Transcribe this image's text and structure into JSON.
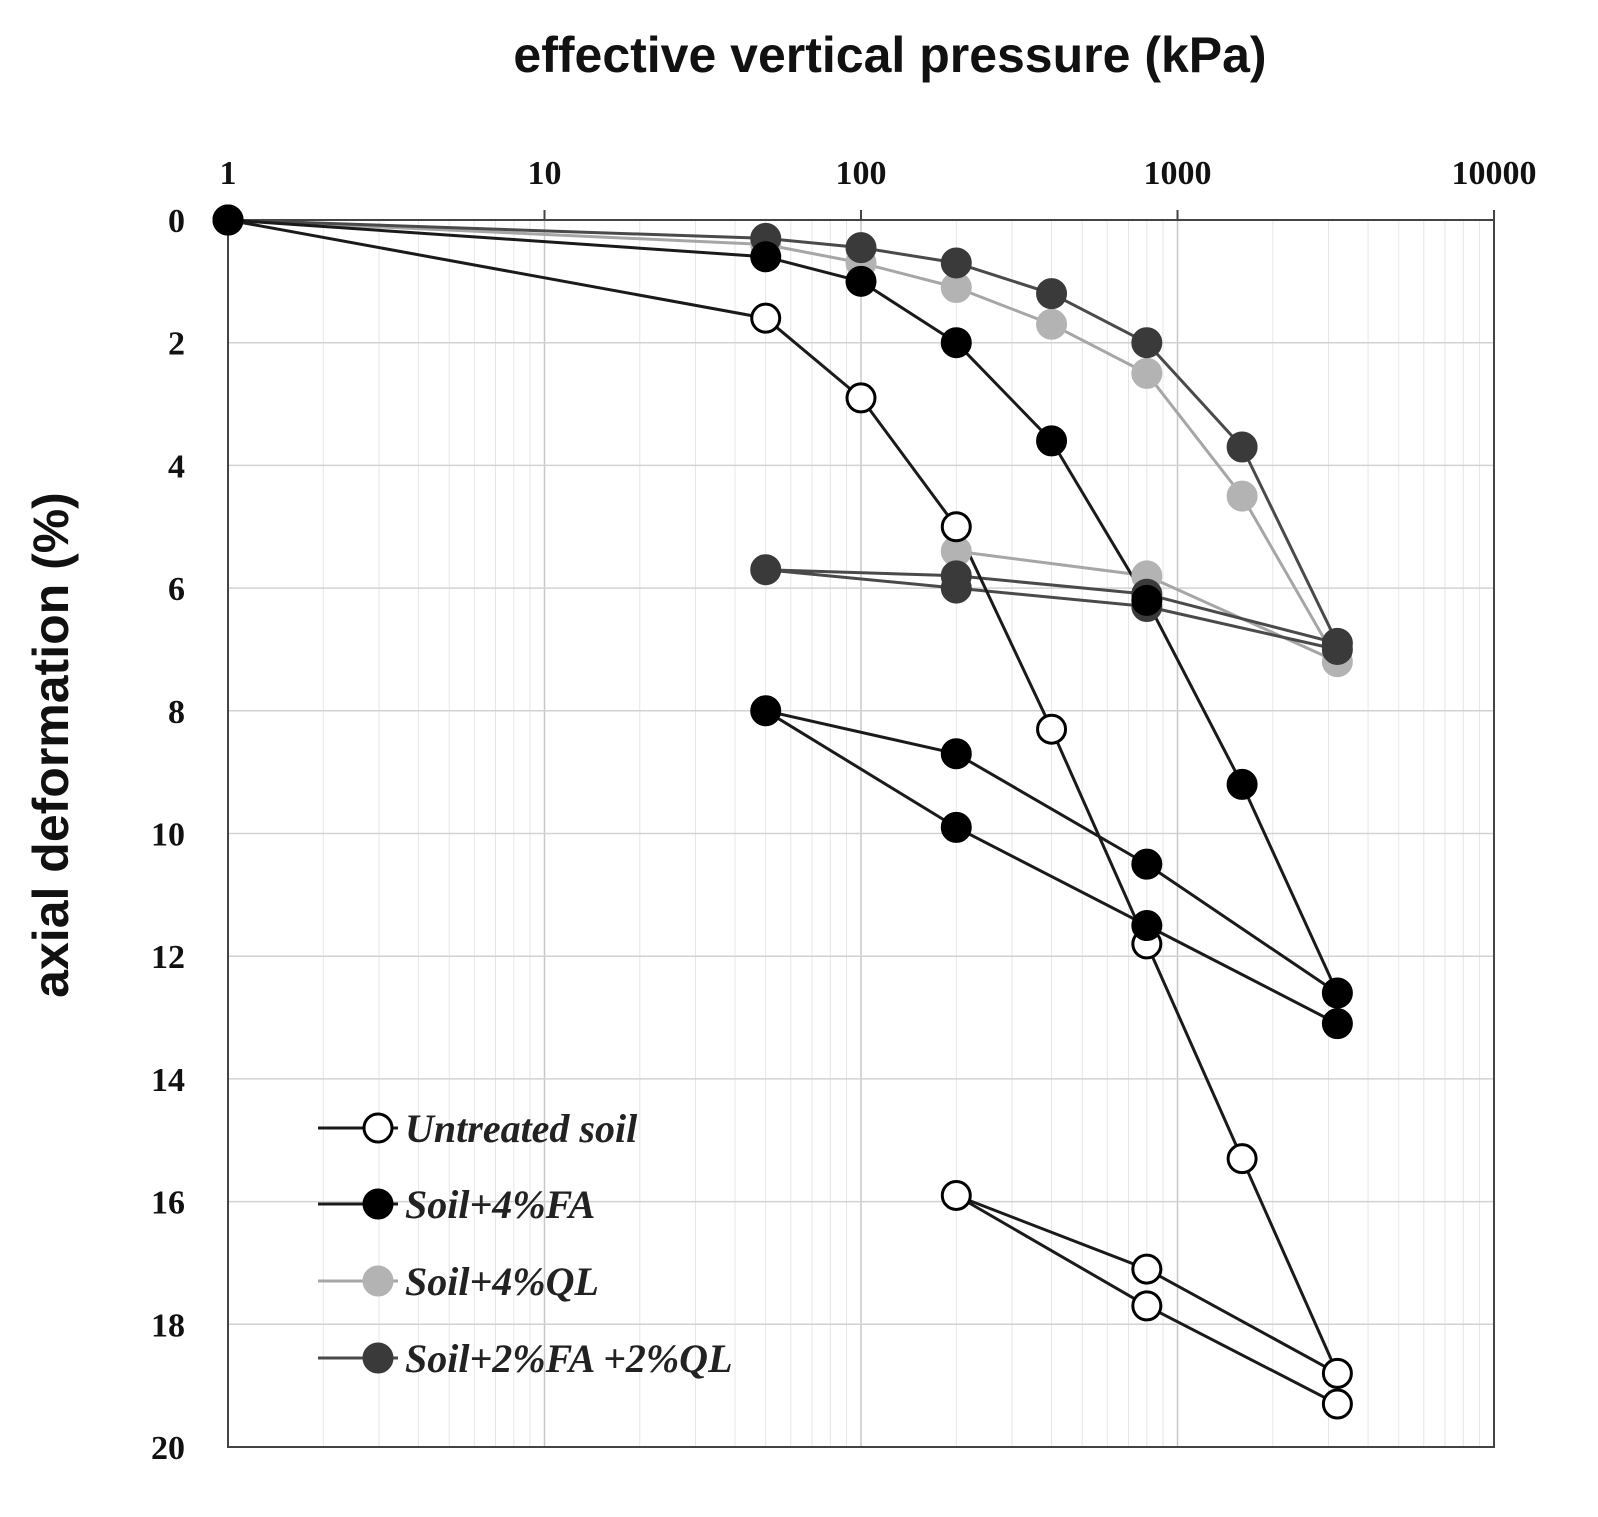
{
  "chart_data": {
    "type": "scatter",
    "xlabel": "effective vertical pressure (kPa)",
    "ylabel": "axial deformation (%)",
    "x_scale": "log",
    "xlim": [
      1,
      10000
    ],
    "ylim": [
      0,
      20
    ],
    "y_inverted": true,
    "x_ticks": [
      "1",
      "10",
      "100",
      "1000",
      "10000"
    ],
    "y_ticks": [
      "0",
      "2",
      "4",
      "6",
      "8",
      "10",
      "12",
      "14",
      "16",
      "18",
      "20"
    ],
    "grid": true,
    "legend_position": "bottom-left",
    "series": [
      {
        "name": "Untreated soil",
        "marker_fill": "#ffffff",
        "marker_stroke": "#000000",
        "line_color": "#1a1a1a",
        "points": [
          [
            1,
            0
          ],
          [
            50,
            1.6
          ],
          [
            100,
            2.9
          ],
          [
            200,
            5.0
          ],
          [
            400,
            8.3
          ],
          [
            800,
            11.8
          ],
          [
            1600,
            15.3
          ],
          [
            3200,
            18.8
          ],
          [
            800,
            17.1
          ],
          [
            200,
            15.9
          ],
          [
            800,
            17.7
          ],
          [
            3200,
            19.3
          ]
        ]
      },
      {
        "name": "Soil+4%FA",
        "marker_fill": "#000000",
        "marker_stroke": "#000000",
        "line_color": "#1a1a1a",
        "points": [
          [
            1,
            0
          ],
          [
            50,
            0.6
          ],
          [
            100,
            1.0
          ],
          [
            200,
            2.0
          ],
          [
            400,
            3.6
          ],
          [
            800,
            6.2
          ],
          [
            1600,
            9.2
          ],
          [
            3200,
            12.6
          ],
          [
            800,
            10.5
          ],
          [
            200,
            8.7
          ],
          [
            50,
            8.0
          ],
          [
            200,
            9.9
          ],
          [
            800,
            11.5
          ],
          [
            3200,
            13.1
          ]
        ]
      },
      {
        "name": "Soil+4%QL",
        "marker_fill": "#b3b3b3",
        "marker_stroke": "#b3b3b3",
        "line_color": "#a6a6a6",
        "points": [
          [
            1,
            0
          ],
          [
            50,
            0.4
          ],
          [
            100,
            0.7
          ],
          [
            200,
            1.1
          ],
          [
            400,
            1.7
          ],
          [
            800,
            2.5
          ],
          [
            1600,
            4.5
          ],
          [
            3200,
            7.2
          ],
          [
            800,
            5.8
          ],
          [
            200,
            5.4
          ]
        ]
      },
      {
        "name": "Soil+2%FA +2%QL",
        "marker_fill": "#3a3a3a",
        "marker_stroke": "#3a3a3a",
        "line_color": "#4a4a4a",
        "points": [
          [
            1,
            0
          ],
          [
            50,
            0.3
          ],
          [
            100,
            0.45
          ],
          [
            200,
            0.7
          ],
          [
            400,
            1.2
          ],
          [
            800,
            2.0
          ],
          [
            1600,
            3.7
          ],
          [
            3200,
            6.9
          ],
          [
            800,
            6.1
          ],
          [
            200,
            5.8
          ],
          [
            50,
            5.7
          ],
          [
            200,
            6.0
          ],
          [
            800,
            6.3
          ],
          [
            3200,
            7.0
          ]
        ]
      }
    ]
  }
}
